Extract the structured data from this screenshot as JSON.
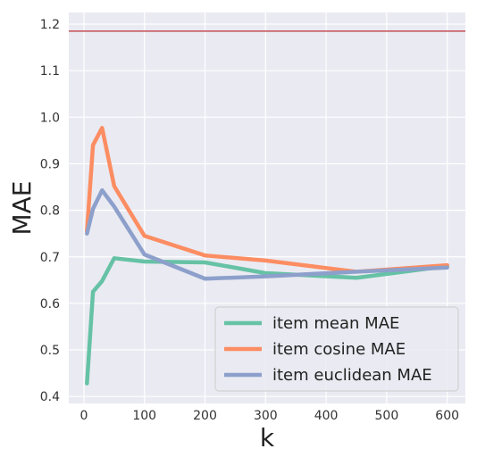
{
  "chart_data": {
    "type": "line",
    "title": "",
    "xlabel": "k",
    "ylabel": "MAE",
    "xlim": [
      -25,
      630
    ],
    "ylim": [
      0.385,
      1.225
    ],
    "x_ticks": [
      0,
      100,
      200,
      300,
      400,
      500,
      600
    ],
    "y_ticks": [
      0.4,
      0.5,
      0.6,
      0.7,
      0.8,
      0.9,
      1.0,
      1.1,
      1.2
    ],
    "x_tick_labels": [
      "0",
      "100",
      "200",
      "300",
      "400",
      "500",
      "600"
    ],
    "y_tick_labels": [
      "0.4",
      "0.5",
      "0.6",
      "0.7",
      "0.8",
      "0.9",
      "1.0",
      "1.1",
      "1.2"
    ],
    "grid": true,
    "legend_position": "bottom-right",
    "reference_line": {
      "y": 1.185,
      "color": "#c44e52"
    },
    "series": [
      {
        "name": "item mean MAE",
        "color": "#66c2a5",
        "x": [
          5,
          15,
          30,
          50,
          100,
          200,
          300,
          450,
          600
        ],
        "y": [
          0.428,
          0.625,
          0.648,
          0.697,
          0.69,
          0.688,
          0.665,
          0.655,
          0.68
        ]
      },
      {
        "name": "item cosine MAE",
        "color": "#fc8d62",
        "x": [
          5,
          15,
          30,
          50,
          100,
          200,
          300,
          450,
          600
        ],
        "y": [
          0.755,
          0.94,
          0.977,
          0.852,
          0.745,
          0.703,
          0.692,
          0.668,
          0.682
        ]
      },
      {
        "name": "item euclidean MAE",
        "color": "#8da0cb",
        "x": [
          5,
          15,
          30,
          50,
          100,
          200,
          300,
          450,
          600
        ],
        "y": [
          0.75,
          0.803,
          0.843,
          0.808,
          0.705,
          0.653,
          0.658,
          0.668,
          0.677
        ]
      }
    ]
  }
}
